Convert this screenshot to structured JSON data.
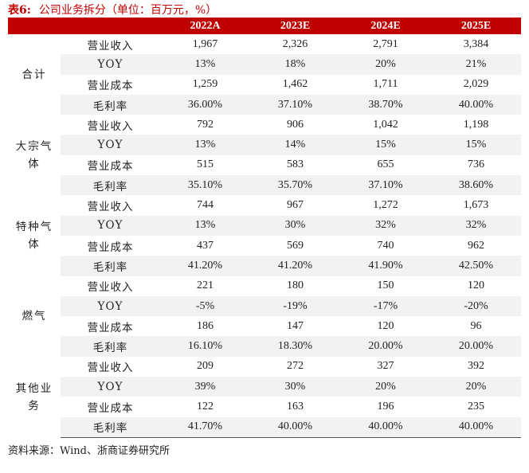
{
  "title": {
    "label": "表6:",
    "text": "公司业务拆分（单位：百万元，%）"
  },
  "header": [
    "",
    "",
    "2022A",
    "2023E",
    "2024E",
    "2025E"
  ],
  "groups": [
    {
      "name": "合计",
      "rows": [
        {
          "metric": "营业收入",
          "values": [
            "1,967",
            "2,326",
            "2,791",
            "3,384"
          ]
        },
        {
          "metric": "YOY",
          "values": [
            "13%",
            "18%",
            "20%",
            "21%"
          ]
        },
        {
          "metric": "营业成本",
          "values": [
            "1,259",
            "1,462",
            "1,711",
            "2,029"
          ]
        },
        {
          "metric": "毛利率",
          "values": [
            "36.00%",
            "37.10%",
            "38.70%",
            "40.00%"
          ]
        }
      ]
    },
    {
      "name": "大宗气体",
      "rows": [
        {
          "metric": "营业收入",
          "values": [
            "792",
            "906",
            "1,042",
            "1,198"
          ]
        },
        {
          "metric": "YOY",
          "values": [
            "13%",
            "14%",
            "15%",
            "15%"
          ]
        },
        {
          "metric": "营业成本",
          "values": [
            "515",
            "583",
            "655",
            "736"
          ]
        },
        {
          "metric": "毛利率",
          "values": [
            "35.10%",
            "35.70%",
            "37.10%",
            "38.60%"
          ]
        }
      ]
    },
    {
      "name": "特种气体",
      "rows": [
        {
          "metric": "营业收入",
          "values": [
            "744",
            "967",
            "1,272",
            "1,673"
          ]
        },
        {
          "metric": "YOY",
          "values": [
            "13%",
            "30%",
            "32%",
            "32%"
          ]
        },
        {
          "metric": "营业成本",
          "values": [
            "437",
            "569",
            "740",
            "962"
          ]
        },
        {
          "metric": "毛利率",
          "values": [
            "41.20%",
            "41.20%",
            "41.90%",
            "42.50%"
          ]
        }
      ]
    },
    {
      "name": "燃气",
      "rows": [
        {
          "metric": "营业收入",
          "values": [
            "221",
            "180",
            "150",
            "120"
          ]
        },
        {
          "metric": "YOY",
          "values": [
            "-5%",
            "-19%",
            "-17%",
            "-20%"
          ]
        },
        {
          "metric": "营业成本",
          "values": [
            "186",
            "147",
            "120",
            "96"
          ]
        },
        {
          "metric": "毛利率",
          "values": [
            "16.10%",
            "18.30%",
            "20.00%",
            "20.00%"
          ]
        }
      ]
    },
    {
      "name": "其他业务",
      "rows": [
        {
          "metric": "营业收入",
          "values": [
            "209",
            "272",
            "327",
            "392"
          ]
        },
        {
          "metric": "YOY",
          "values": [
            "39%",
            "30%",
            "20%",
            "20%"
          ]
        },
        {
          "metric": "营业成本",
          "values": [
            "122",
            "163",
            "196",
            "235"
          ]
        },
        {
          "metric": "毛利率",
          "values": [
            "41.70%",
            "40.00%",
            "40.00%",
            "40.00%"
          ]
        }
      ]
    }
  ],
  "source": "资料来源：Wind、浙商证券研究所",
  "colors": {
    "accent": "#c00000",
    "shade": "#f2f2f2"
  }
}
